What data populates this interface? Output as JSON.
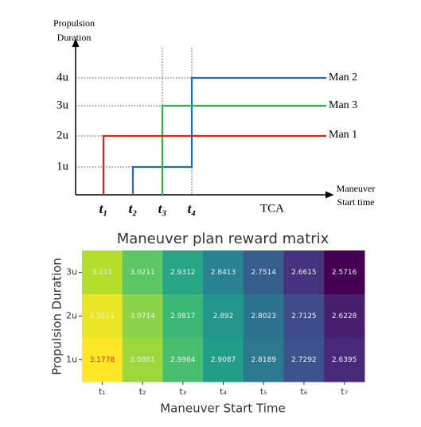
{
  "diagram": {
    "y_axis_label": [
      "Propulsion",
      "Duration"
    ],
    "x_axis_label": [
      "Maneuver",
      "Start time"
    ],
    "yticks": [
      "1u",
      "2u",
      "3u",
      "4u"
    ],
    "xticks": [
      "t₁",
      "t₂",
      "t₃",
      "t₄",
      "TCA"
    ],
    "lines": [
      {
        "name": "Man 2",
        "color": "#1f6fb2"
      },
      {
        "name": "Man 3",
        "color": "#2db34a"
      },
      {
        "name": "Man 1",
        "color": "#e0201b"
      }
    ]
  },
  "chart_data": {
    "type": "heatmap",
    "title": "Maneuver plan reward matrix",
    "x_label": "Maneuver Start Time",
    "y_label": "Propulsion Duration",
    "x_categories": [
      "t₁",
      "t₂",
      "t₃",
      "t₄",
      "t₅",
      "t₆",
      "t₇"
    ],
    "y_categories": [
      "3u",
      "2u",
      "1u"
    ],
    "values": [
      [
        3.111,
        3.0211,
        2.9312,
        2.8413,
        2.7514,
        2.6615,
        2.5716
      ],
      [
        3.1611,
        3.0714,
        2.9817,
        2.892,
        2.8023,
        2.7125,
        2.6228
      ],
      [
        3.1778,
        3.0881,
        2.9984,
        2.9087,
        2.8189,
        2.7292,
        2.6395
      ]
    ],
    "colormap": "viridis",
    "highlight": [
      2,
      0
    ],
    "highlight_color": "#ff2a2a"
  }
}
